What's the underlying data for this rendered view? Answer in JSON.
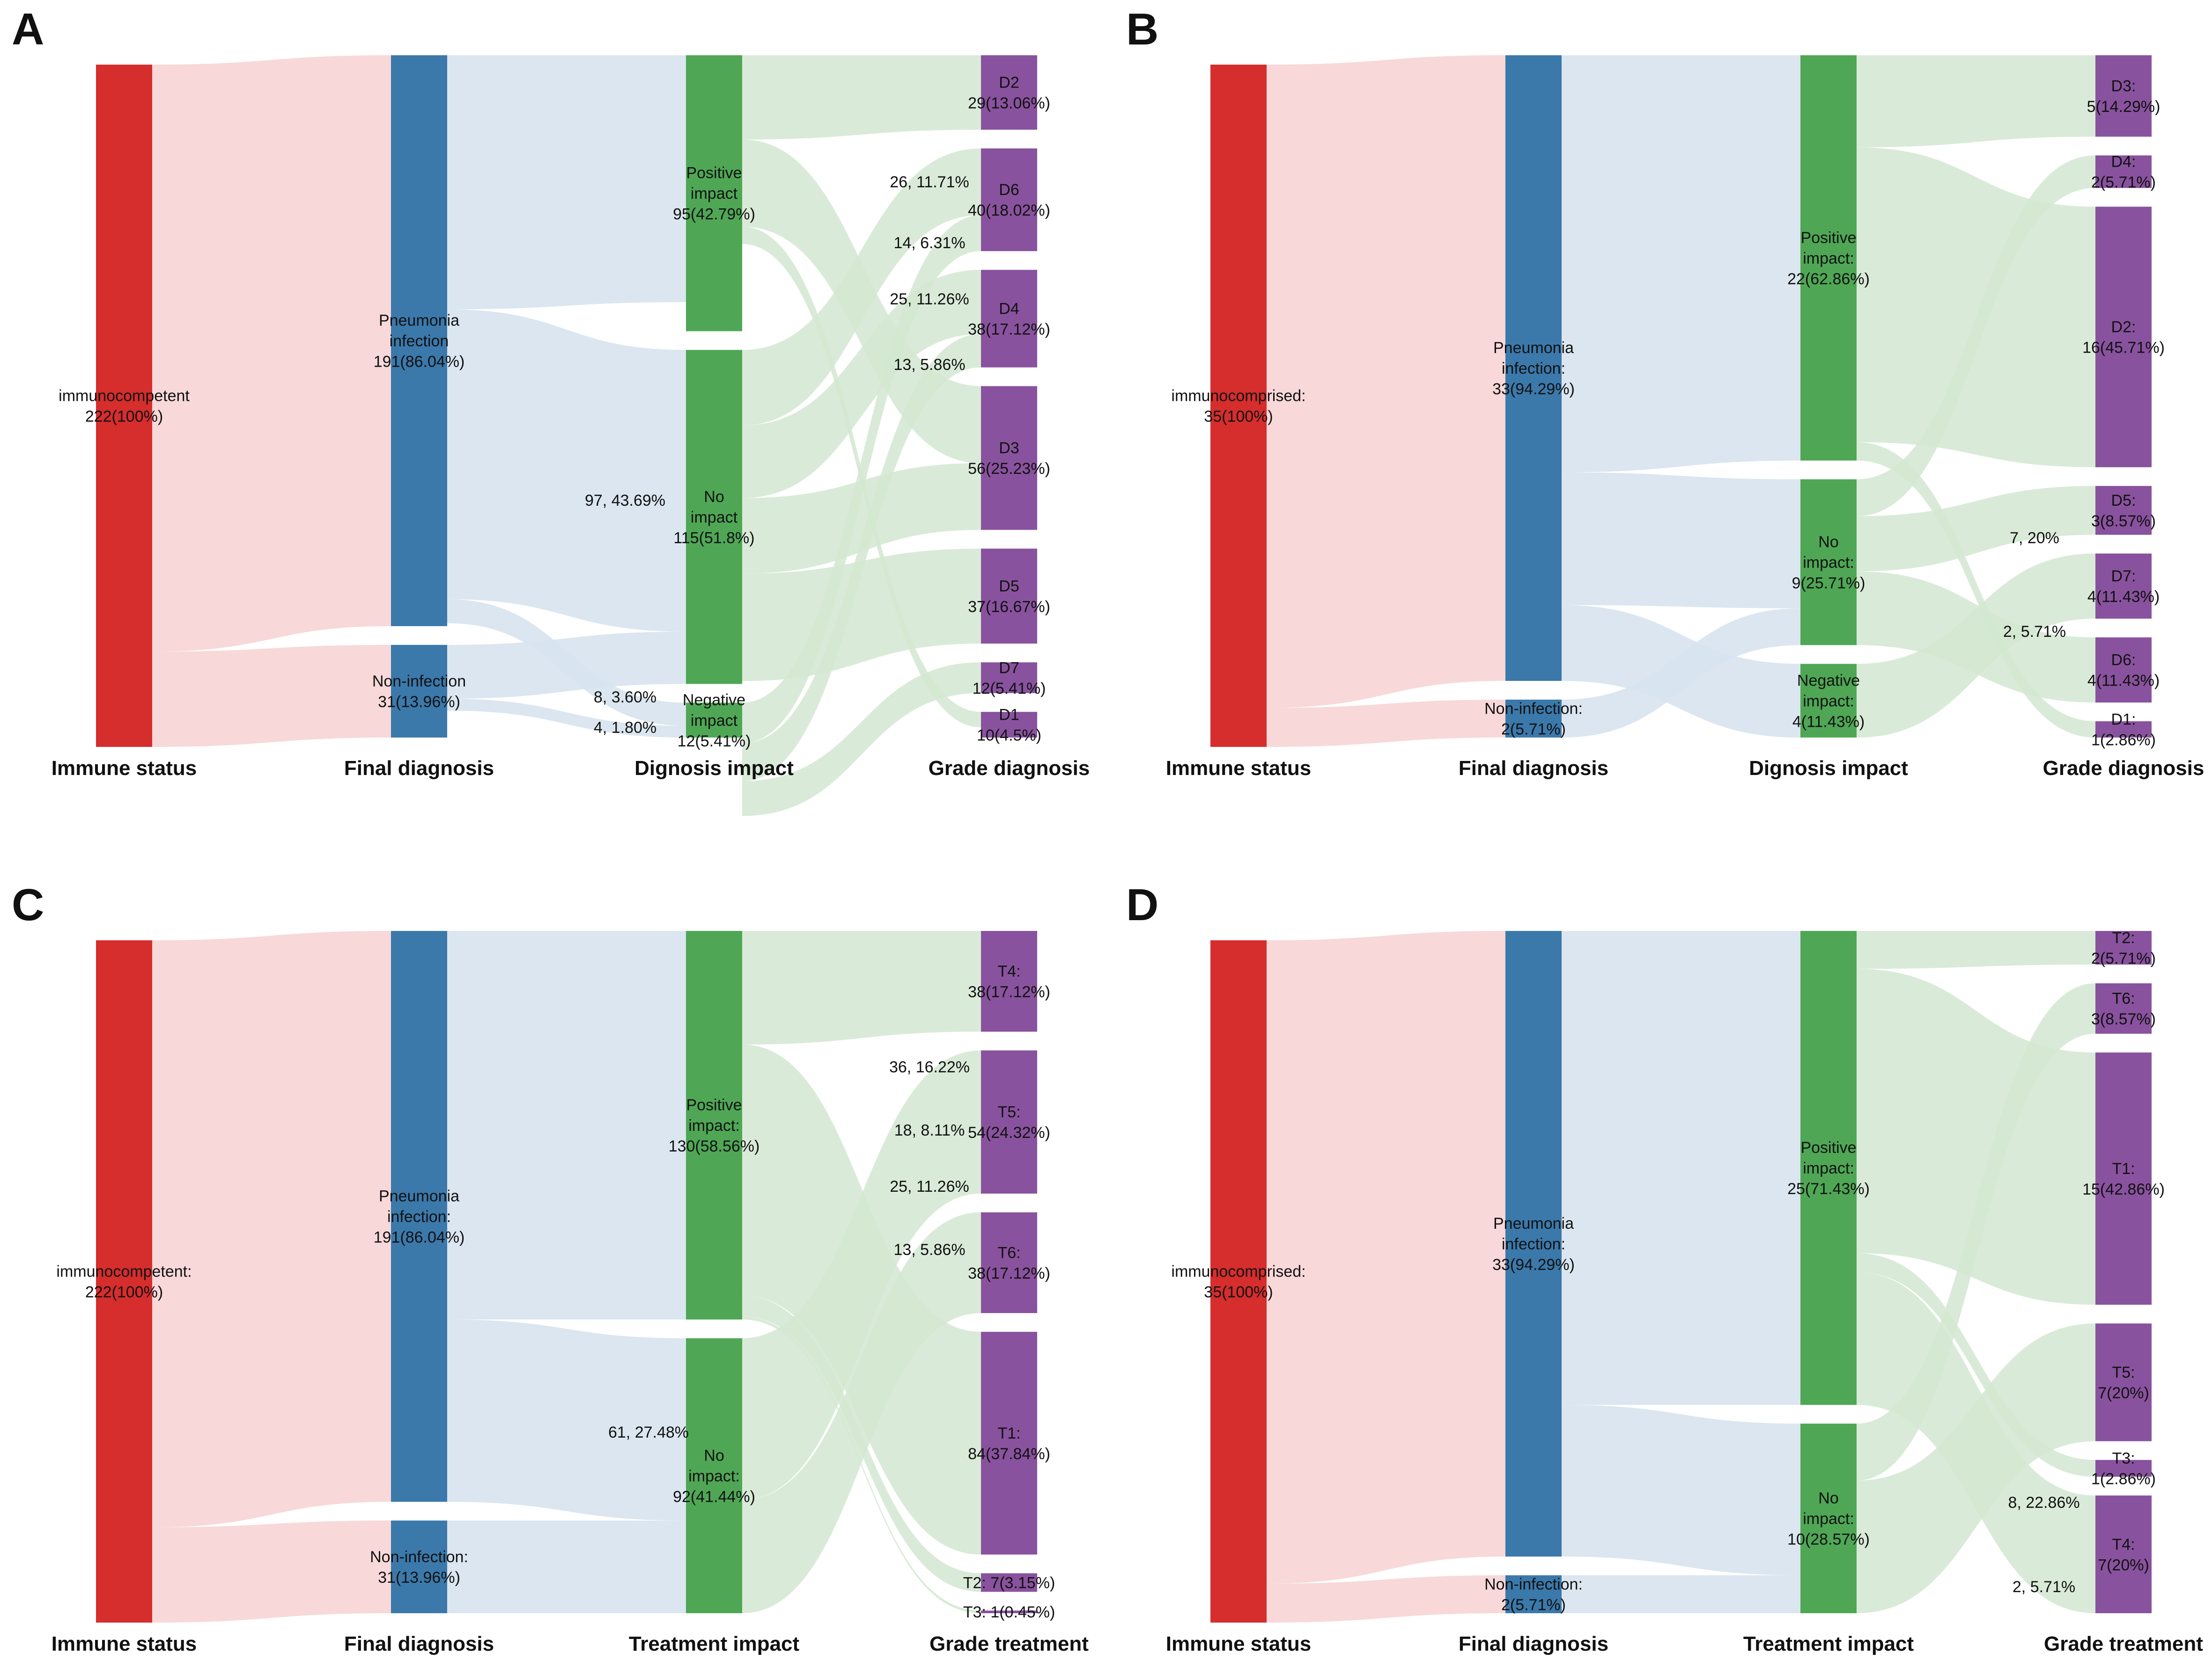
{
  "colors": {
    "immune": "#d62d2d",
    "diagnosis": "#3b79ab",
    "impact": "#4fa755",
    "grade": "#89529e",
    "link_immune": "#f7d4d4",
    "link_diagnosis": "#d7e3ee",
    "link_impact": "#d2e8d1"
  },
  "panels": [
    {
      "letter": "A",
      "columns": [
        "Immune status",
        "Final diagnosis",
        "Dignosis impact",
        "Grade diagnosis"
      ],
      "nodes": [
        {
          "id": "imm",
          "col": 0,
          "value": 222,
          "lines": [
            "immunocompetent",
            "222(100%)"
          ]
        },
        {
          "id": "pn",
          "col": 1,
          "value": 191,
          "lines": [
            "Pneumonia",
            "infection",
            "191(86.04%)"
          ]
        },
        {
          "id": "ni",
          "col": 1,
          "value": 31,
          "lines": [
            "Non-infection",
            "31(13.96%)"
          ]
        },
        {
          "id": "pos",
          "col": 2,
          "value": 95,
          "lines": [
            "Positive",
            "impact",
            "95(42.79%)"
          ]
        },
        {
          "id": "noi",
          "col": 2,
          "value": 115,
          "lines": [
            "No",
            "impact",
            "115(51.8%)"
          ]
        },
        {
          "id": "neg",
          "col": 2,
          "value": 12,
          "lines": [
            "Negative",
            "impact",
            "12(5.41%)"
          ]
        },
        {
          "id": "d2",
          "col": 3,
          "value": 29,
          "lines": [
            "D2",
            "29(13.06%)"
          ]
        },
        {
          "id": "d6",
          "col": 3,
          "value": 40,
          "lines": [
            "D6",
            "40(18.02%)"
          ]
        },
        {
          "id": "d4",
          "col": 3,
          "value": 38,
          "lines": [
            "D4",
            "38(17.12%)"
          ]
        },
        {
          "id": "d3",
          "col": 3,
          "value": 56,
          "lines": [
            "D3",
            "56(25.23%)"
          ]
        },
        {
          "id": "d5",
          "col": 3,
          "value": 37,
          "lines": [
            "D5",
            "37(16.67%)"
          ]
        },
        {
          "id": "d7",
          "col": 3,
          "value": 12,
          "lines": [
            "D7",
            "12(5.41%)"
          ]
        },
        {
          "id": "d1",
          "col": 3,
          "value": 10,
          "lines": [
            "D1",
            "10(4.5%)"
          ]
        }
      ],
      "links": [
        {
          "s": "imm",
          "t": "pn",
          "v": 191
        },
        {
          "s": "imm",
          "t": "ni",
          "v": 31
        },
        {
          "s": "pn",
          "t": "pos",
          "v": 85
        },
        {
          "s": "pn",
          "t": "noi",
          "v": 97
        },
        {
          "s": "pn",
          "t": "neg",
          "v": 8
        },
        {
          "s": "ni",
          "t": "noi",
          "v": 18
        },
        {
          "s": "ni",
          "t": "neg",
          "v": 4
        },
        {
          "s": "pos",
          "t": "d2",
          "v": 29
        },
        {
          "s": "pos",
          "t": "d3",
          "v": 30
        },
        {
          "s": "pos",
          "t": "d1",
          "v": 6
        },
        {
          "s": "noi",
          "t": "d6",
          "v": 26
        },
        {
          "s": "noi",
          "t": "d4",
          "v": 25
        },
        {
          "s": "noi",
          "t": "d3",
          "v": 26
        },
        {
          "s": "noi",
          "t": "d5",
          "v": 37
        },
        {
          "s": "neg",
          "t": "d6",
          "v": 14
        },
        {
          "s": "neg",
          "t": "d4",
          "v": 13
        },
        {
          "s": "neg",
          "t": "d7",
          "v": 12
        }
      ],
      "flow_labels": [
        "26, 11.71%",
        "14, 6.31%",
        "25, 11.26%",
        "13, 5.86%",
        "97, 43.69%",
        "8, 3.60%",
        "4, 1.80%"
      ]
    },
    {
      "letter": "B",
      "columns": [
        "Immune status",
        "Final diagnosis",
        "Dignosis impact",
        "Grade diagnosis"
      ],
      "nodes": [
        {
          "id": "imm",
          "col": 0,
          "value": 35,
          "lines": [
            "immunocomprised:",
            "35(100%)"
          ]
        },
        {
          "id": "pn",
          "col": 1,
          "value": 33,
          "lines": [
            "Pneumonia",
            "infection:",
            "33(94.29%)"
          ]
        },
        {
          "id": "ni",
          "col": 1,
          "value": 2,
          "lines": [
            "Non-infection:",
            "2(5.71%)"
          ]
        },
        {
          "id": "pos",
          "col": 2,
          "value": 22,
          "lines": [
            "Positive",
            "impact:",
            "22(62.86%)"
          ]
        },
        {
          "id": "noi",
          "col": 2,
          "value": 9,
          "lines": [
            "No",
            "impact:",
            "9(25.71%)"
          ]
        },
        {
          "id": "neg",
          "col": 2,
          "value": 4,
          "lines": [
            "Negative",
            "impact:",
            "4(11.43%)"
          ]
        },
        {
          "id": "d3",
          "col": 3,
          "value": 5,
          "lines": [
            "D3:",
            "5(14.29%)"
          ]
        },
        {
          "id": "d4",
          "col": 3,
          "value": 2,
          "lines": [
            "D4:",
            "2(5.71%)"
          ]
        },
        {
          "id": "d2",
          "col": 3,
          "value": 16,
          "lines": [
            "D2:",
            "16(45.71%)"
          ]
        },
        {
          "id": "d5",
          "col": 3,
          "value": 3,
          "lines": [
            "D5:",
            "3(8.57%)"
          ]
        },
        {
          "id": "d7",
          "col": 3,
          "value": 4,
          "lines": [
            "D7:",
            "4(11.43%)"
          ]
        },
        {
          "id": "d6",
          "col": 3,
          "value": 4,
          "lines": [
            "D6:",
            "4(11.43%)"
          ]
        },
        {
          "id": "d1",
          "col": 3,
          "value": 1,
          "lines": [
            "D1:",
            "1(2.86%)"
          ]
        }
      ],
      "links": [
        {
          "s": "imm",
          "t": "pn",
          "v": 33
        },
        {
          "s": "imm",
          "t": "ni",
          "v": 2
        },
        {
          "s": "pn",
          "t": "pos",
          "v": 22
        },
        {
          "s": "pn",
          "t": "noi",
          "v": 7
        },
        {
          "s": "pn",
          "t": "neg",
          "v": 4
        },
        {
          "s": "ni",
          "t": "noi",
          "v": 2
        },
        {
          "s": "pos",
          "t": "d3",
          "v": 5
        },
        {
          "s": "pos",
          "t": "d2",
          "v": 16
        },
        {
          "s": "pos",
          "t": "d1",
          "v": 1
        },
        {
          "s": "noi",
          "t": "d4",
          "v": 2
        },
        {
          "s": "noi",
          "t": "d5",
          "v": 3
        },
        {
          "s": "noi",
          "t": "d6",
          "v": 4
        },
        {
          "s": "neg",
          "t": "d7",
          "v": 4
        }
      ],
      "flow_labels": [
        "7, 20%",
        "2, 5.71%"
      ]
    },
    {
      "letter": "C",
      "columns": [
        "Immune status",
        "Final diagnosis",
        "Treatment impact",
        "Grade treatment"
      ],
      "nodes": [
        {
          "id": "imm",
          "col": 0,
          "value": 222,
          "lines": [
            "immunocompetent:",
            "222(100%)"
          ]
        },
        {
          "id": "pn",
          "col": 1,
          "value": 191,
          "lines": [
            "Pneumonia",
            "infection:",
            "191(86.04%)"
          ]
        },
        {
          "id": "ni",
          "col": 1,
          "value": 31,
          "lines": [
            "Non-infection:",
            "31(13.96%)"
          ]
        },
        {
          "id": "pos",
          "col": 2,
          "value": 130,
          "lines": [
            "Positive",
            "impact:",
            "130(58.56%)"
          ]
        },
        {
          "id": "noi",
          "col": 2,
          "value": 92,
          "lines": [
            "No",
            "impact:",
            "92(41.44%)"
          ]
        },
        {
          "id": "t4",
          "col": 3,
          "value": 38,
          "lines": [
            "T4:",
            "38(17.12%)"
          ]
        },
        {
          "id": "t5",
          "col": 3,
          "value": 54,
          "lines": [
            "T5:",
            "54(24.32%)"
          ]
        },
        {
          "id": "t6",
          "col": 3,
          "value": 38,
          "lines": [
            "T6:",
            "38(17.12%)"
          ]
        },
        {
          "id": "t1",
          "col": 3,
          "value": 84,
          "lines": [
            "T1:",
            "84(37.84%)"
          ]
        },
        {
          "id": "t2",
          "col": 3,
          "value": 7,
          "lines": [
            "T2: 7(3.15%)"
          ]
        },
        {
          "id": "t3",
          "col": 3,
          "value": 1,
          "lines": [
            "T3: 1(0.45%)"
          ]
        }
      ],
      "links": [
        {
          "s": "imm",
          "t": "pn",
          "v": 191
        },
        {
          "s": "imm",
          "t": "ni",
          "v": 31
        },
        {
          "s": "pn",
          "t": "pos",
          "v": 130
        },
        {
          "s": "pn",
          "t": "noi",
          "v": 61
        },
        {
          "s": "ni",
          "t": "noi",
          "v": 31
        },
        {
          "s": "pos",
          "t": "t4",
          "v": 38
        },
        {
          "s": "pos",
          "t": "t1",
          "v": 84
        },
        {
          "s": "pos",
          "t": "t2",
          "v": 7
        },
        {
          "s": "pos",
          "t": "t3",
          "v": 1
        },
        {
          "s": "noi",
          "t": "t5",
          "v": 54
        },
        {
          "s": "noi",
          "t": "t6",
          "v": 38
        }
      ],
      "flow_labels": [
        "36, 16.22%",
        "18, 8.11%",
        "25, 11.26%",
        "13, 5.86%",
        "61, 27.48%"
      ]
    },
    {
      "letter": "D",
      "columns": [
        "Immune status",
        "Final diagnosis",
        "Treatment impact",
        "Grade treatment"
      ],
      "nodes": [
        {
          "id": "imm",
          "col": 0,
          "value": 35,
          "lines": [
            "immunocomprised:",
            "35(100%)"
          ]
        },
        {
          "id": "pn",
          "col": 1,
          "value": 33,
          "lines": [
            "Pneumonia",
            "infection:",
            "33(94.29%)"
          ]
        },
        {
          "id": "ni",
          "col": 1,
          "value": 2,
          "lines": [
            "Non-infection:",
            "2(5.71%)"
          ]
        },
        {
          "id": "pos",
          "col": 2,
          "value": 25,
          "lines": [
            "Positive",
            "impact:",
            "25(71.43%)"
          ]
        },
        {
          "id": "noi",
          "col": 2,
          "value": 10,
          "lines": [
            "No",
            "impact:",
            "10(28.57%)"
          ]
        },
        {
          "id": "t2",
          "col": 3,
          "value": 2,
          "lines": [
            "T2:",
            "2(5.71%)"
          ]
        },
        {
          "id": "t6",
          "col": 3,
          "value": 3,
          "lines": [
            "T6:",
            "3(8.57%)"
          ]
        },
        {
          "id": "t1",
          "col": 3,
          "value": 15,
          "lines": [
            "T1:",
            "15(42.86%)"
          ]
        },
        {
          "id": "t5",
          "col": 3,
          "value": 7,
          "lines": [
            "T5:",
            "7(20%)"
          ]
        },
        {
          "id": "t3",
          "col": 3,
          "value": 1,
          "lines": [
            "T3:",
            "1(2.86%)"
          ]
        },
        {
          "id": "t4",
          "col": 3,
          "value": 7,
          "lines": [
            "T4:",
            "7(20%)"
          ]
        }
      ],
      "links": [
        {
          "s": "imm",
          "t": "pn",
          "v": 33
        },
        {
          "s": "imm",
          "t": "ni",
          "v": 2
        },
        {
          "s": "pn",
          "t": "pos",
          "v": 25
        },
        {
          "s": "pn",
          "t": "noi",
          "v": 8
        },
        {
          "s": "ni",
          "t": "noi",
          "v": 2
        },
        {
          "s": "pos",
          "t": "t2",
          "v": 2
        },
        {
          "s": "pos",
          "t": "t1",
          "v": 15
        },
        {
          "s": "pos",
          "t": "t3",
          "v": 1
        },
        {
          "s": "pos",
          "t": "t4",
          "v": 7
        },
        {
          "s": "noi",
          "t": "t6",
          "v": 3
        },
        {
          "s": "noi",
          "t": "t5",
          "v": 7
        }
      ],
      "flow_labels": [
        "8, 22.86%",
        "2, 5.71%"
      ]
    }
  ]
}
